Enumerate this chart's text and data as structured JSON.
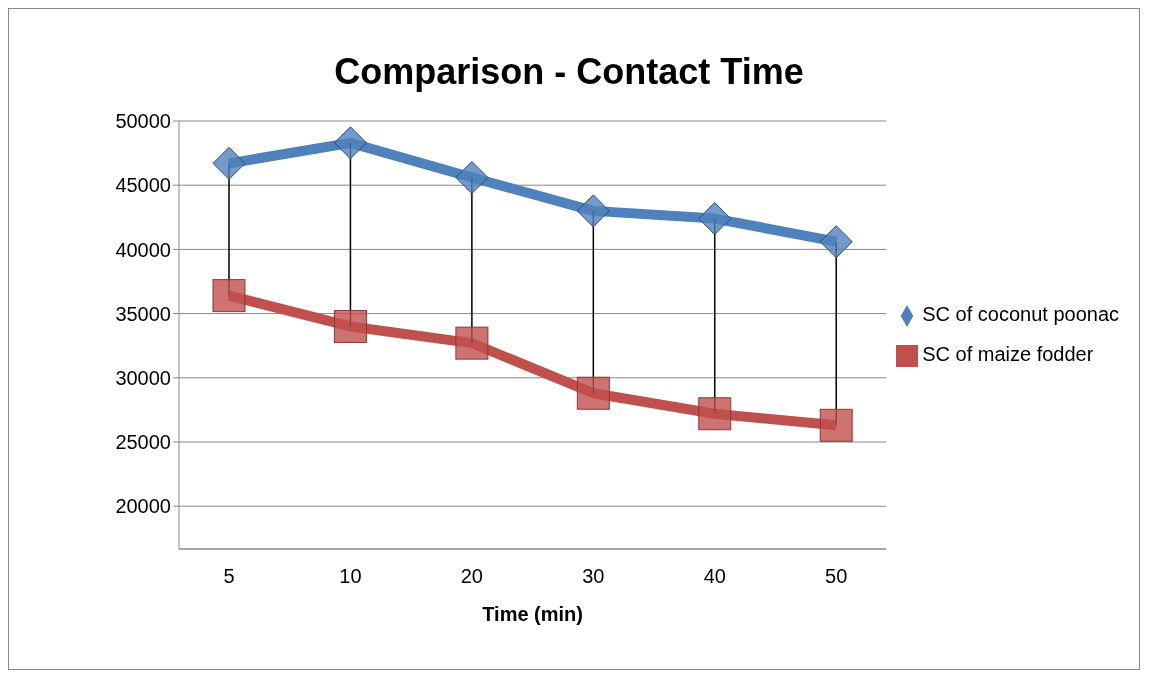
{
  "chart_data": {
    "type": "line",
    "title": "Comparison - Contact Time",
    "xlabel": "Time (min)",
    "categories": [
      "5",
      "10",
      "20",
      "30",
      "40",
      "50"
    ],
    "series": [
      {
        "name": "SC of coconut poonac",
        "color": "#4f81bd",
        "marker": "diamond",
        "values": [
          46700,
          48300,
          45600,
          43000,
          42400,
          40600
        ]
      },
      {
        "name": "SC of maize fodder",
        "color": "#c0504d",
        "marker": "square",
        "values": [
          36400,
          34000,
          32700,
          28800,
          27200,
          26300
        ]
      }
    ],
    "ylim": [
      16667,
      50000
    ],
    "yticks": [
      20000,
      25000,
      30000,
      35000,
      40000,
      45000,
      50000
    ],
    "grid": "y",
    "legend": "right"
  }
}
